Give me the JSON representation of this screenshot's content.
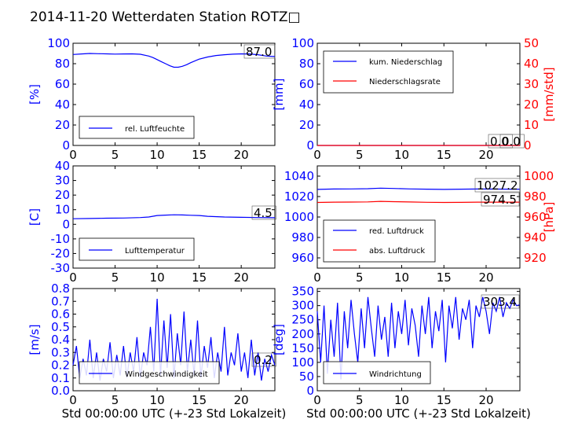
{
  "figure": {
    "title": "2014-11-20 Wetterdaten Station ROTZ□"
  },
  "colors": {
    "primary": "#0000ff",
    "secondary": "#ff0000",
    "axis": "#000000",
    "background": "#ffffff"
  },
  "chart_data": [
    {
      "id": "humidity",
      "type": "line",
      "xlim": [
        0,
        24
      ],
      "xticks": [
        0,
        5,
        10,
        15,
        20
      ],
      "ylim": [
        0,
        100
      ],
      "yticks": [
        0,
        20,
        40,
        60,
        80,
        100
      ],
      "ylabel": "[%]",
      "ylabel_color": "#0000ff",
      "ytick_color": "#0000ff",
      "series": [
        {
          "name": "rel. Luftfeuchte",
          "color": "#0000ff",
          "x": [
            0,
            1,
            2,
            3,
            4,
            5,
            6,
            7,
            8,
            9,
            9.5,
            10,
            10.5,
            11,
            11.5,
            12,
            12.5,
            13,
            13.5,
            14,
            15,
            16,
            17,
            18,
            19,
            20,
            21,
            22,
            23,
            24
          ],
          "y": [
            89,
            89.5,
            90,
            89.8,
            89.6,
            89.4,
            89.5,
            89.6,
            89.2,
            87.5,
            86,
            84,
            82,
            80,
            78,
            76.5,
            76.5,
            77.5,
            79,
            81,
            84.5,
            86.5,
            88,
            88.8,
            89.3,
            89.6,
            89.5,
            88.8,
            87.5,
            87
          ]
        }
      ],
      "annotation": "87.0",
      "legend_position": "lower-left"
    },
    {
      "id": "precipitation",
      "type": "line",
      "xlim": [
        0,
        24
      ],
      "xticks": [
        0,
        5,
        10,
        15,
        20
      ],
      "ylim": [
        0,
        100
      ],
      "yticks": [
        0,
        20,
        40,
        60,
        80,
        100
      ],
      "ylabel": "[mm]",
      "ylabel_color": "#0000ff",
      "ytick_color": "#0000ff",
      "ylim_right": [
        0,
        50
      ],
      "yticks_right": [
        0,
        10,
        20,
        30,
        40,
        50
      ],
      "ylabel_right": "[mm/std]",
      "ylabel_right_color": "#ff0000",
      "series": [
        {
          "name": "kum. Niederschlag",
          "color": "#0000ff",
          "axis": "left",
          "x": [
            0,
            24
          ],
          "y": [
            0,
            0
          ]
        },
        {
          "name": "Niederschlagsrate",
          "color": "#ff0000",
          "axis": "right",
          "x": [
            0,
            24
          ],
          "y": [
            0,
            0
          ]
        }
      ],
      "annotations": [
        "0.0",
        "0.0"
      ],
      "legend_position": "upper-left"
    },
    {
      "id": "temperature",
      "type": "line",
      "xlim": [
        0,
        24
      ],
      "xticks": [
        0,
        5,
        10,
        15,
        20
      ],
      "ylim": [
        -30,
        40
      ],
      "yticks": [
        -30,
        -20,
        -10,
        0,
        10,
        20,
        30,
        40
      ],
      "ylabel": "[C]",
      "ylabel_color": "#0000ff",
      "ytick_color": "#0000ff",
      "series": [
        {
          "name": "Lufttemperatur",
          "color": "#0000ff",
          "x": [
            0,
            2,
            4,
            6,
            8,
            9,
            10,
            11,
            12,
            13,
            14,
            15,
            16,
            18,
            20,
            22,
            24
          ],
          "y": [
            3.8,
            4.0,
            4.2,
            4.3,
            4.6,
            5.0,
            6.0,
            6.3,
            6.5,
            6.4,
            6.2,
            6.0,
            5.5,
            5.0,
            4.8,
            4.6,
            4.5
          ]
        }
      ],
      "annotation": "4.5",
      "legend_position": "lower-left"
    },
    {
      "id": "pressure",
      "type": "line",
      "xlim": [
        0,
        24
      ],
      "xticks": [
        0,
        5,
        10,
        15,
        20
      ],
      "ylim": [
        950,
        1050
      ],
      "yticks": [
        960,
        980,
        1000,
        1020,
        1040
      ],
      "ytick_color": "#0000ff",
      "ylim_right": [
        910,
        1010
      ],
      "yticks_right": [
        920,
        940,
        960,
        980,
        1000
      ],
      "ylabel_right": "[hPa]",
      "ylabel_right_color": "#ff0000",
      "series": [
        {
          "name": "red. Luftdruck",
          "color": "#0000ff",
          "axis": "left",
          "x": [
            0,
            2,
            4,
            6,
            7.5,
            9,
            11,
            13,
            15,
            17,
            19,
            21,
            23,
            24
          ],
          "y": [
            1027,
            1027.4,
            1027.5,
            1027.7,
            1028.2,
            1027.9,
            1027.5,
            1027.2,
            1027.0,
            1027.2,
            1027.4,
            1027.3,
            1027.2,
            1027.2
          ]
        },
        {
          "name": "abs. Luftdruck",
          "color": "#ff0000",
          "axis": "right",
          "x": [
            0,
            2,
            4,
            6,
            7.5,
            9,
            11,
            13,
            15,
            17,
            19,
            21,
            23,
            24
          ],
          "y": [
            974.2,
            974.5,
            974.6,
            974.8,
            975.3,
            975.0,
            974.7,
            974.4,
            974.2,
            974.3,
            974.5,
            974.5,
            974.5,
            974.5
          ]
        }
      ],
      "annotations": [
        "1027.2",
        "974.5"
      ],
      "legend_position": "lower-left"
    },
    {
      "id": "wind_speed",
      "type": "line",
      "xlim": [
        0,
        24
      ],
      "xticks": [
        0,
        5,
        10,
        15,
        20
      ],
      "ylim": [
        0,
        0.8
      ],
      "yticks": [
        0.0,
        0.1,
        0.2,
        0.3,
        0.4,
        0.5,
        0.6,
        0.7,
        0.8
      ],
      "ytick_labels": [
        "0.0",
        "0.1",
        "0.2",
        "0.3",
        "0.4",
        "0.5",
        "0.6",
        "0.7",
        "0.8"
      ],
      "ylabel": "[m/s]",
      "ylabel_color": "#0000ff",
      "ytick_color": "#0000ff",
      "xlabel": "Std 00:00:00 UTC (+-23 Std Lokalzeit)",
      "series": [
        {
          "name": "Windgeschwindigkeit",
          "color": "#0000ff",
          "x": [
            0,
            0.4,
            0.8,
            1.2,
            1.6,
            2.0,
            2.4,
            2.8,
            3.2,
            3.6,
            4.0,
            4.4,
            4.8,
            5.2,
            5.6,
            6.0,
            6.4,
            6.8,
            7.2,
            7.6,
            8.0,
            8.4,
            8.8,
            9.2,
            9.6,
            10.0,
            10.4,
            10.8,
            11.2,
            11.6,
            12.0,
            12.4,
            12.8,
            13.2,
            13.6,
            14.0,
            14.4,
            14.8,
            15.2,
            15.6,
            16.0,
            16.4,
            16.8,
            17.2,
            17.6,
            18.0,
            18.4,
            18.8,
            19.2,
            19.6,
            20.0,
            20.4,
            20.8,
            21.2,
            21.6,
            22.0,
            22.4,
            22.8,
            23.2,
            23.6,
            24.0
          ],
          "y": [
            0.2,
            0.35,
            0.1,
            0.25,
            0.12,
            0.4,
            0.1,
            0.3,
            0.08,
            0.25,
            0.15,
            0.38,
            0.1,
            0.28,
            0.12,
            0.35,
            0.1,
            0.3,
            0.15,
            0.42,
            0.1,
            0.3,
            0.2,
            0.5,
            0.15,
            0.72,
            0.12,
            0.55,
            0.18,
            0.6,
            0.1,
            0.45,
            0.2,
            0.62,
            0.15,
            0.4,
            0.12,
            0.55,
            0.1,
            0.35,
            0.18,
            0.42,
            0.1,
            0.3,
            0.15,
            0.5,
            0.12,
            0.3,
            0.2,
            0.45,
            0.15,
            0.3,
            0.1,
            0.4,
            0.12,
            0.3,
            0.08,
            0.25,
            0.15,
            0.28,
            0.2
          ]
        }
      ],
      "annotation": "0.2",
      "legend_position": "lower-center"
    },
    {
      "id": "wind_direction",
      "type": "line",
      "xlim": [
        0,
        24
      ],
      "xticks": [
        0,
        5,
        10,
        15,
        20
      ],
      "ylim": [
        0,
        360
      ],
      "yticks": [
        0,
        50,
        100,
        150,
        200,
        250,
        300,
        350
      ],
      "ylabel": "[deg]",
      "ylabel_color": "#0000ff",
      "ytick_color": "#0000ff",
      "xlabel": "Std 00:00:00 UTC (+-23 Std Lokalzeit)",
      "series": [
        {
          "name": "Windrichtung",
          "color": "#0000ff",
          "x": [
            0,
            0.4,
            0.8,
            1.2,
            1.6,
            2.0,
            2.4,
            2.8,
            3.2,
            3.6,
            4.0,
            4.4,
            4.8,
            5.2,
            5.6,
            6.0,
            6.4,
            6.8,
            7.2,
            7.6,
            8.0,
            8.4,
            8.8,
            9.2,
            9.6,
            10.0,
            10.4,
            10.8,
            11.2,
            11.6,
            12.0,
            12.4,
            12.8,
            13.2,
            13.6,
            14.0,
            14.4,
            14.8,
            15.2,
            15.6,
            16.0,
            16.4,
            16.8,
            17.2,
            17.6,
            18.0,
            18.4,
            18.8,
            19.2,
            19.6,
            20.0,
            20.4,
            20.8,
            21.2,
            21.6,
            22.0,
            22.4,
            22.8,
            23.2,
            23.6,
            24.0
          ],
          "y": [
            280,
            100,
            300,
            60,
            250,
            120,
            310,
            40,
            280,
            150,
            320,
            200,
            100,
            290,
            150,
            330,
            220,
            120,
            300,
            180,
            260,
            120,
            310,
            150,
            280,
            200,
            320,
            160,
            290,
            230,
            120,
            300,
            200,
            330,
            150,
            280,
            210,
            320,
            100,
            300,
            220,
            330,
            180,
            290,
            250,
            320,
            150,
            300,
            260,
            330,
            280,
            200,
            310,
            280,
            330,
            260,
            310,
            290,
            320,
            300,
            303
          ]
        }
      ],
      "annotation": "303.4",
      "legend_position": "lower-left"
    }
  ]
}
